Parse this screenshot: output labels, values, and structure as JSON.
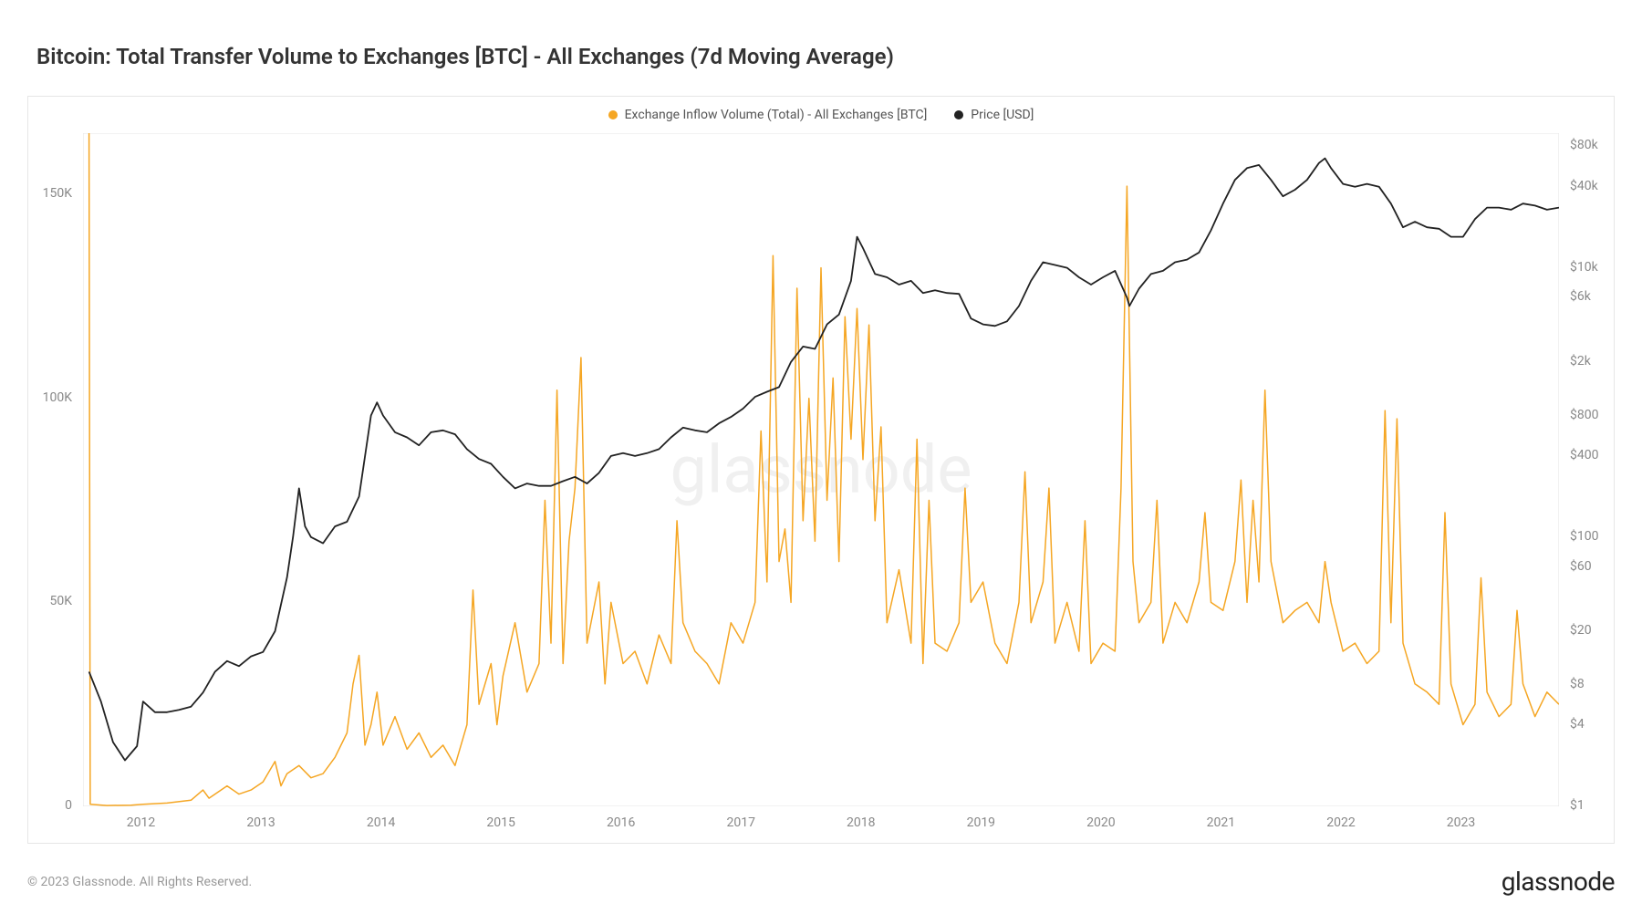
{
  "title": "Bitcoin: Total Transfer Volume to Exchanges [BTC] - All Exchanges (7d Moving Average)",
  "legend": {
    "series1": {
      "label": "Exchange Inflow Volume (Total) - All Exchanges [BTC]",
      "color": "#f5a623"
    },
    "series2": {
      "label": "Price [USD]",
      "color": "#222222"
    }
  },
  "watermark": "glassnode",
  "copyright": "© 2023 Glassnode. All Rights Reserved.",
  "brand": "glassnode",
  "chart": {
    "type": "line-dual-axis",
    "background_color": "#ffffff",
    "border_color": "#e6e6e6",
    "grid_color": "#f2f2f2",
    "label_color": "#888888",
    "label_fontsize": 14,
    "x_axis": {
      "min_year": 2011.5,
      "max_year": 2023.8,
      "ticks": [
        2012,
        2013,
        2014,
        2015,
        2016,
        2017,
        2018,
        2019,
        2020,
        2021,
        2022,
        2023
      ]
    },
    "y_left": {
      "scale": "linear",
      "min": 0,
      "max": 165000,
      "ticks": [
        0,
        50000,
        100000,
        150000
      ],
      "tick_labels": [
        "0",
        "50K",
        "100K",
        "150K"
      ]
    },
    "y_right": {
      "scale": "log",
      "min": 1,
      "max": 100000,
      "ticks": [
        1,
        4,
        8,
        20,
        60,
        100,
        400,
        800,
        2000,
        6000,
        10000,
        40000,
        80000
      ],
      "tick_labels": [
        "$1",
        "$4",
        "$8",
        "$20",
        "$60",
        "$100",
        "$400",
        "$800",
        "$2k",
        "$6k",
        "$10k",
        "$40k",
        "$80k"
      ]
    },
    "price_series": {
      "color": "#222222",
      "line_width": 1.8,
      "data": [
        [
          2011.55,
          10
        ],
        [
          2011.65,
          6
        ],
        [
          2011.75,
          3
        ],
        [
          2011.85,
          2.2
        ],
        [
          2011.95,
          2.8
        ],
        [
          2012.0,
          6
        ],
        [
          2012.1,
          5
        ],
        [
          2012.2,
          5
        ],
        [
          2012.3,
          5.2
        ],
        [
          2012.4,
          5.5
        ],
        [
          2012.5,
          7
        ],
        [
          2012.6,
          10
        ],
        [
          2012.7,
          12
        ],
        [
          2012.8,
          11
        ],
        [
          2012.9,
          13
        ],
        [
          2013.0,
          14
        ],
        [
          2013.1,
          20
        ],
        [
          2013.2,
          50
        ],
        [
          2013.25,
          100
        ],
        [
          2013.3,
          230
        ],
        [
          2013.35,
          120
        ],
        [
          2013.4,
          100
        ],
        [
          2013.5,
          90
        ],
        [
          2013.6,
          120
        ],
        [
          2013.7,
          130
        ],
        [
          2013.8,
          200
        ],
        [
          2013.9,
          800
        ],
        [
          2013.95,
          1000
        ],
        [
          2014.0,
          800
        ],
        [
          2014.1,
          600
        ],
        [
          2014.2,
          550
        ],
        [
          2014.3,
          480
        ],
        [
          2014.4,
          600
        ],
        [
          2014.5,
          620
        ],
        [
          2014.6,
          580
        ],
        [
          2014.7,
          450
        ],
        [
          2014.8,
          380
        ],
        [
          2014.9,
          350
        ],
        [
          2015.0,
          280
        ],
        [
          2015.1,
          230
        ],
        [
          2015.2,
          250
        ],
        [
          2015.3,
          240
        ],
        [
          2015.4,
          240
        ],
        [
          2015.5,
          260
        ],
        [
          2015.6,
          280
        ],
        [
          2015.7,
          250
        ],
        [
          2015.8,
          300
        ],
        [
          2015.9,
          400
        ],
        [
          2016.0,
          420
        ],
        [
          2016.1,
          400
        ],
        [
          2016.2,
          420
        ],
        [
          2016.3,
          450
        ],
        [
          2016.4,
          550
        ],
        [
          2016.5,
          650
        ],
        [
          2016.6,
          620
        ],
        [
          2016.7,
          600
        ],
        [
          2016.8,
          700
        ],
        [
          2016.9,
          780
        ],
        [
          2017.0,
          900
        ],
        [
          2017.1,
          1100
        ],
        [
          2017.2,
          1200
        ],
        [
          2017.3,
          1300
        ],
        [
          2017.4,
          2000
        ],
        [
          2017.5,
          2600
        ],
        [
          2017.6,
          2500
        ],
        [
          2017.7,
          3800
        ],
        [
          2017.8,
          4500
        ],
        [
          2017.9,
          8000
        ],
        [
          2017.95,
          17000
        ],
        [
          2018.0,
          14000
        ],
        [
          2018.1,
          9000
        ],
        [
          2018.2,
          8500
        ],
        [
          2018.3,
          7500
        ],
        [
          2018.4,
          8000
        ],
        [
          2018.5,
          6500
        ],
        [
          2018.6,
          6800
        ],
        [
          2018.7,
          6500
        ],
        [
          2018.8,
          6400
        ],
        [
          2018.9,
          4200
        ],
        [
          2019.0,
          3800
        ],
        [
          2019.1,
          3700
        ],
        [
          2019.2,
          4000
        ],
        [
          2019.3,
          5200
        ],
        [
          2019.4,
          8000
        ],
        [
          2019.5,
          11000
        ],
        [
          2019.6,
          10500
        ],
        [
          2019.7,
          10000
        ],
        [
          2019.8,
          8500
        ],
        [
          2019.9,
          7500
        ],
        [
          2020.0,
          8500
        ],
        [
          2020.1,
          9500
        ],
        [
          2020.2,
          6000
        ],
        [
          2020.22,
          5200
        ],
        [
          2020.3,
          7000
        ],
        [
          2020.4,
          9000
        ],
        [
          2020.5,
          9500
        ],
        [
          2020.6,
          11000
        ],
        [
          2020.7,
          11500
        ],
        [
          2020.8,
          13000
        ],
        [
          2020.9,
          19000
        ],
        [
          2021.0,
          30000
        ],
        [
          2021.1,
          45000
        ],
        [
          2021.2,
          55000
        ],
        [
          2021.3,
          58000
        ],
        [
          2021.4,
          45000
        ],
        [
          2021.5,
          34000
        ],
        [
          2021.6,
          38000
        ],
        [
          2021.7,
          45000
        ],
        [
          2021.8,
          60000
        ],
        [
          2021.85,
          65000
        ],
        [
          2021.9,
          55000
        ],
        [
          2022.0,
          42000
        ],
        [
          2022.1,
          40000
        ],
        [
          2022.2,
          42000
        ],
        [
          2022.3,
          40000
        ],
        [
          2022.4,
          30000
        ],
        [
          2022.5,
          20000
        ],
        [
          2022.6,
          22000
        ],
        [
          2022.7,
          20000
        ],
        [
          2022.8,
          19500
        ],
        [
          2022.9,
          17000
        ],
        [
          2023.0,
          17000
        ],
        [
          2023.1,
          23000
        ],
        [
          2023.2,
          28000
        ],
        [
          2023.3,
          28000
        ],
        [
          2023.4,
          27000
        ],
        [
          2023.5,
          30000
        ],
        [
          2023.6,
          29000
        ],
        [
          2023.7,
          27000
        ],
        [
          2023.8,
          28000
        ]
      ]
    },
    "volume_series": {
      "color": "#f5a623",
      "line_width": 1.5,
      "data": [
        [
          2011.55,
          165000
        ],
        [
          2011.56,
          500
        ],
        [
          2011.7,
          200
        ],
        [
          2011.9,
          300
        ],
        [
          2012.0,
          500
        ],
        [
          2012.2,
          800
        ],
        [
          2012.4,
          1500
        ],
        [
          2012.5,
          4000
        ],
        [
          2012.55,
          2000
        ],
        [
          2012.6,
          3000
        ],
        [
          2012.7,
          5000
        ],
        [
          2012.8,
          3000
        ],
        [
          2012.9,
          4000
        ],
        [
          2013.0,
          6000
        ],
        [
          2013.1,
          11000
        ],
        [
          2013.15,
          5000
        ],
        [
          2013.2,
          8000
        ],
        [
          2013.3,
          10000
        ],
        [
          2013.4,
          7000
        ],
        [
          2013.5,
          8000
        ],
        [
          2013.6,
          12000
        ],
        [
          2013.7,
          18000
        ],
        [
          2013.75,
          30000
        ],
        [
          2013.8,
          37000
        ],
        [
          2013.85,
          15000
        ],
        [
          2013.9,
          20000
        ],
        [
          2013.95,
          28000
        ],
        [
          2014.0,
          15000
        ],
        [
          2014.1,
          22000
        ],
        [
          2014.2,
          14000
        ],
        [
          2014.3,
          18000
        ],
        [
          2014.4,
          12000
        ],
        [
          2014.5,
          15000
        ],
        [
          2014.6,
          10000
        ],
        [
          2014.7,
          20000
        ],
        [
          2014.75,
          53000
        ],
        [
          2014.8,
          25000
        ],
        [
          2014.9,
          35000
        ],
        [
          2014.95,
          20000
        ],
        [
          2015.0,
          32000
        ],
        [
          2015.1,
          45000
        ],
        [
          2015.2,
          28000
        ],
        [
          2015.3,
          35000
        ],
        [
          2015.35,
          75000
        ],
        [
          2015.4,
          40000
        ],
        [
          2015.45,
          102000
        ],
        [
          2015.5,
          35000
        ],
        [
          2015.55,
          65000
        ],
        [
          2015.6,
          78000
        ],
        [
          2015.65,
          110000
        ],
        [
          2015.7,
          40000
        ],
        [
          2015.8,
          55000
        ],
        [
          2015.85,
          30000
        ],
        [
          2015.9,
          50000
        ],
        [
          2016.0,
          35000
        ],
        [
          2016.1,
          38000
        ],
        [
          2016.2,
          30000
        ],
        [
          2016.3,
          42000
        ],
        [
          2016.4,
          35000
        ],
        [
          2016.45,
          70000
        ],
        [
          2016.5,
          45000
        ],
        [
          2016.6,
          38000
        ],
        [
          2016.7,
          35000
        ],
        [
          2016.8,
          30000
        ],
        [
          2016.9,
          45000
        ],
        [
          2017.0,
          40000
        ],
        [
          2017.1,
          50000
        ],
        [
          2017.15,
          92000
        ],
        [
          2017.2,
          55000
        ],
        [
          2017.25,
          135000
        ],
        [
          2017.3,
          60000
        ],
        [
          2017.35,
          68000
        ],
        [
          2017.4,
          50000
        ],
        [
          2017.45,
          127000
        ],
        [
          2017.5,
          70000
        ],
        [
          2017.55,
          100000
        ],
        [
          2017.6,
          65000
        ],
        [
          2017.65,
          132000
        ],
        [
          2017.7,
          75000
        ],
        [
          2017.75,
          105000
        ],
        [
          2017.8,
          60000
        ],
        [
          2017.85,
          120000
        ],
        [
          2017.9,
          90000
        ],
        [
          2017.95,
          122000
        ],
        [
          2018.0,
          85000
        ],
        [
          2018.05,
          118000
        ],
        [
          2018.1,
          70000
        ],
        [
          2018.15,
          93000
        ],
        [
          2018.2,
          45000
        ],
        [
          2018.3,
          58000
        ],
        [
          2018.4,
          40000
        ],
        [
          2018.45,
          90000
        ],
        [
          2018.5,
          35000
        ],
        [
          2018.55,
          75000
        ],
        [
          2018.6,
          40000
        ],
        [
          2018.7,
          38000
        ],
        [
          2018.8,
          45000
        ],
        [
          2018.85,
          78000
        ],
        [
          2018.9,
          50000
        ],
        [
          2019.0,
          55000
        ],
        [
          2019.1,
          40000
        ],
        [
          2019.2,
          35000
        ],
        [
          2019.3,
          50000
        ],
        [
          2019.35,
          82000
        ],
        [
          2019.4,
          45000
        ],
        [
          2019.5,
          55000
        ],
        [
          2019.55,
          78000
        ],
        [
          2019.6,
          40000
        ],
        [
          2019.7,
          50000
        ],
        [
          2019.8,
          38000
        ],
        [
          2019.85,
          70000
        ],
        [
          2019.9,
          35000
        ],
        [
          2020.0,
          40000
        ],
        [
          2020.1,
          38000
        ],
        [
          2020.15,
          78000
        ],
        [
          2020.2,
          152000
        ],
        [
          2020.25,
          60000
        ],
        [
          2020.3,
          45000
        ],
        [
          2020.4,
          50000
        ],
        [
          2020.45,
          75000
        ],
        [
          2020.5,
          40000
        ],
        [
          2020.6,
          50000
        ],
        [
          2020.7,
          45000
        ],
        [
          2020.8,
          55000
        ],
        [
          2020.85,
          72000
        ],
        [
          2020.9,
          50000
        ],
        [
          2021.0,
          48000
        ],
        [
          2021.1,
          60000
        ],
        [
          2021.15,
          80000
        ],
        [
          2021.2,
          50000
        ],
        [
          2021.25,
          75000
        ],
        [
          2021.3,
          55000
        ],
        [
          2021.35,
          102000
        ],
        [
          2021.4,
          60000
        ],
        [
          2021.5,
          45000
        ],
        [
          2021.6,
          48000
        ],
        [
          2021.7,
          50000
        ],
        [
          2021.8,
          45000
        ],
        [
          2021.85,
          60000
        ],
        [
          2021.9,
          50000
        ],
        [
          2022.0,
          38000
        ],
        [
          2022.1,
          40000
        ],
        [
          2022.2,
          35000
        ],
        [
          2022.3,
          38000
        ],
        [
          2022.35,
          97000
        ],
        [
          2022.4,
          45000
        ],
        [
          2022.45,
          95000
        ],
        [
          2022.5,
          40000
        ],
        [
          2022.6,
          30000
        ],
        [
          2022.7,
          28000
        ],
        [
          2022.8,
          25000
        ],
        [
          2022.85,
          72000
        ],
        [
          2022.9,
          30000
        ],
        [
          2023.0,
          20000
        ],
        [
          2023.1,
          25000
        ],
        [
          2023.15,
          56000
        ],
        [
          2023.2,
          28000
        ],
        [
          2023.3,
          22000
        ],
        [
          2023.4,
          25000
        ],
        [
          2023.45,
          48000
        ],
        [
          2023.5,
          30000
        ],
        [
          2023.6,
          22000
        ],
        [
          2023.7,
          28000
        ],
        [
          2023.8,
          25000
        ]
      ]
    }
  }
}
